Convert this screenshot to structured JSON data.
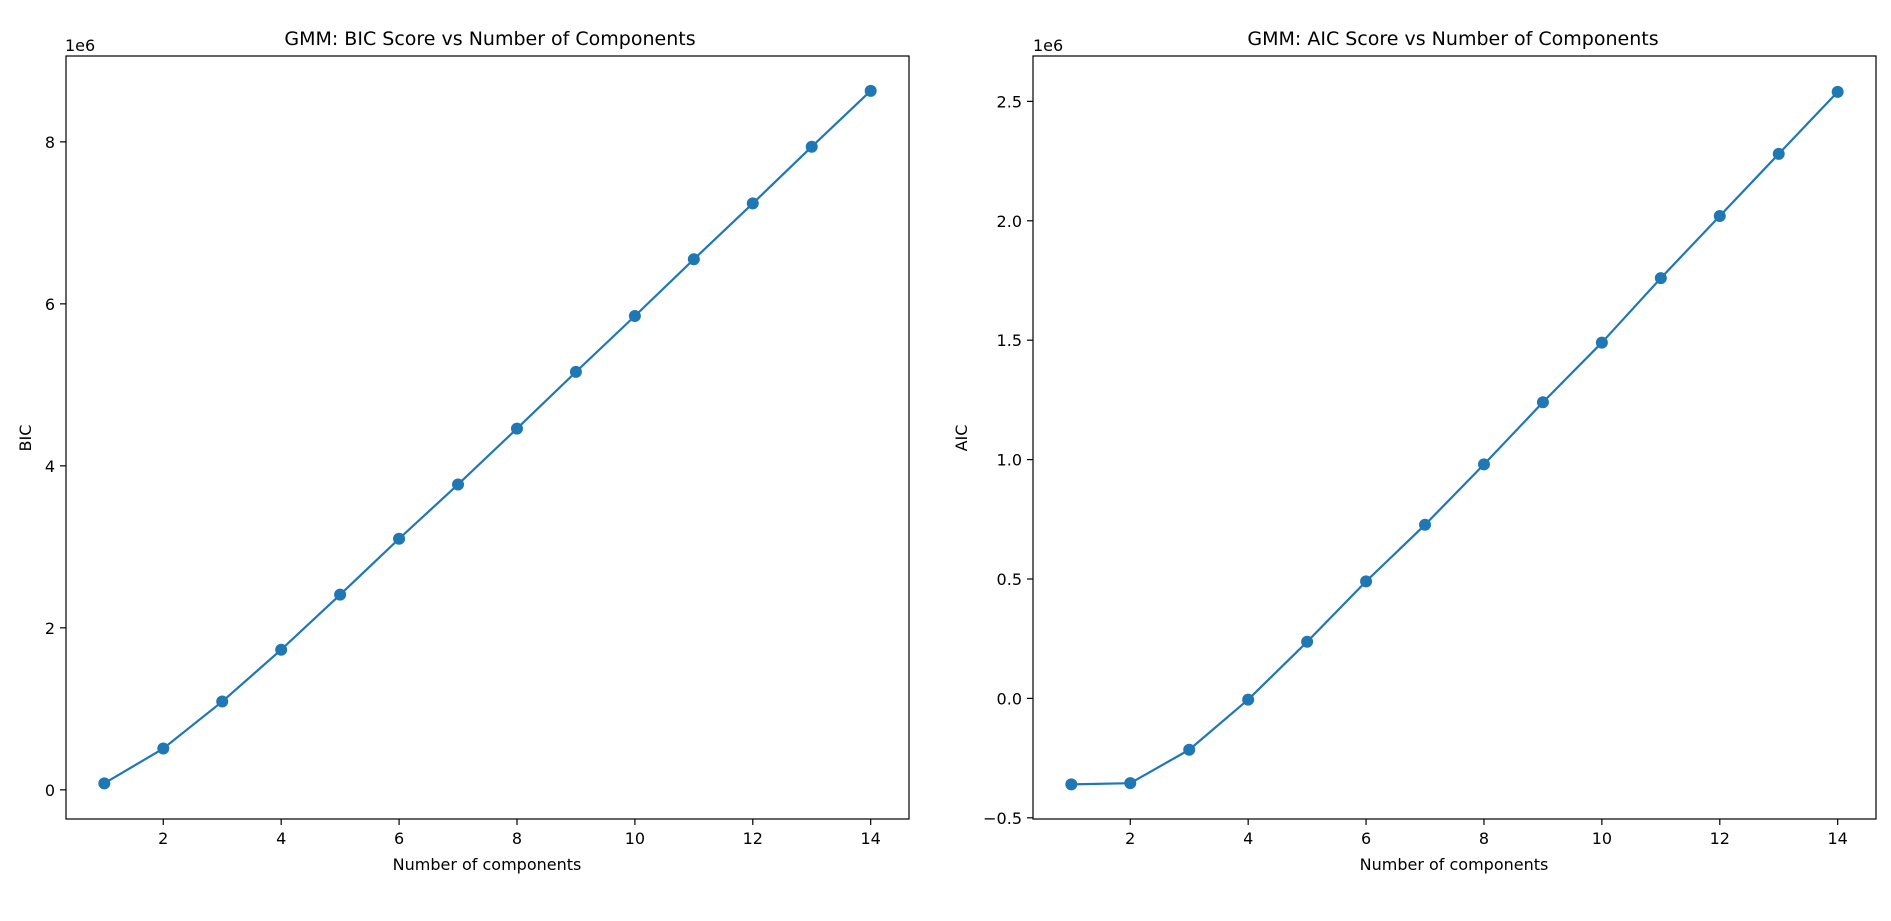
{
  "chart_data": [
    {
      "type": "line",
      "title": "GMM: BIC Score vs Number of Components",
      "xlabel": "Number of components",
      "ylabel": "BIC",
      "y_offset_label": "1e6",
      "x": [
        1,
        2,
        3,
        4,
        5,
        6,
        7,
        8,
        9,
        10,
        11,
        12,
        13,
        14
      ],
      "series": [
        {
          "values": [
            0.08,
            0.51,
            1.09,
            1.73,
            2.41,
            3.1,
            3.77,
            4.46,
            5.16,
            5.85,
            6.55,
            7.24,
            7.94,
            8.63
          ],
          "marker": "circle"
        }
      ],
      "xlim": [
        0.35,
        14.65
      ],
      "ylim": [
        -0.36,
        9.06
      ],
      "xticks": [
        2,
        4,
        6,
        8,
        10,
        12,
        14
      ],
      "yticks": [
        0,
        2,
        4,
        6,
        8
      ],
      "grid": false,
      "color": "#1f77b4"
    },
    {
      "type": "line",
      "title": "GMM: AIC Score vs Number of Components",
      "xlabel": "Number of components",
      "ylabel": "AIC",
      "y_offset_label": "1e6",
      "x": [
        1,
        2,
        3,
        4,
        5,
        6,
        7,
        8,
        9,
        10,
        11,
        12,
        13,
        14
      ],
      "series": [
        {
          "values": [
            -0.36,
            -0.355,
            -0.215,
            -0.005,
            0.237,
            0.49,
            0.727,
            0.98,
            1.24,
            1.49,
            1.76,
            2.02,
            2.28,
            2.54
          ],
          "marker": "circle"
        }
      ],
      "xlim": [
        0.35,
        14.65
      ],
      "ylim": [
        -0.505,
        2.69
      ],
      "xticks": [
        2,
        4,
        6,
        8,
        10,
        12,
        14
      ],
      "yticks": [
        -0.5,
        0.0,
        0.5,
        1.0,
        1.5,
        2.0,
        2.5
      ],
      "ytick_labels": [
        "−0.5",
        "0.0",
        "0.5",
        "1.0",
        "1.5",
        "2.0",
        "2.5"
      ],
      "grid": false,
      "color": "#1f77b4"
    }
  ]
}
